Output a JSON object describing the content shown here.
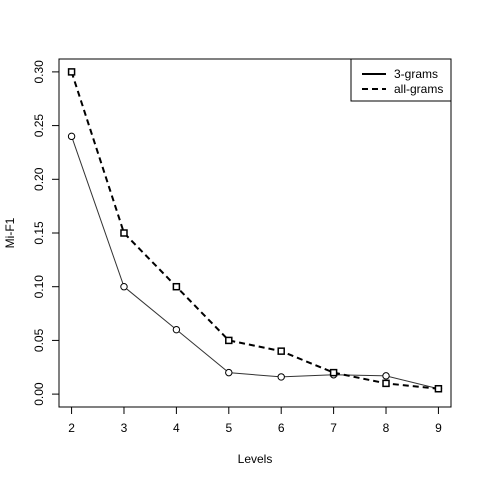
{
  "chart_data": {
    "type": "line",
    "title": "",
    "xlabel": "Levels",
    "ylabel": "Mi-F1",
    "x": [
      2,
      3,
      4,
      5,
      6,
      7,
      8,
      9
    ],
    "x_ticks": [
      "2",
      "3",
      "4",
      "5",
      "6",
      "7",
      "8",
      "9"
    ],
    "xlim": [
      1.76,
      9.24
    ],
    "ylim": [
      -0.012,
      0.312
    ],
    "y_ticks": [
      "0.00",
      "0.05",
      "0.10",
      "0.15",
      "0.20",
      "0.25",
      "0.30"
    ],
    "grid": false,
    "legend_position": "top-right",
    "series": [
      {
        "name": "3-grams",
        "values": [
          0.24,
          0.1,
          0.06,
          0.02,
          0.016,
          0.018,
          0.017,
          0.005
        ],
        "line_style": "solid",
        "marker": "circle",
        "color": "#333333"
      },
      {
        "name": "all-grams",
        "values": [
          0.3,
          0.15,
          0.1,
          0.05,
          0.04,
          0.02,
          0.01,
          0.005
        ],
        "line_style": "dashed",
        "marker": "square",
        "color": "#000000"
      }
    ]
  }
}
